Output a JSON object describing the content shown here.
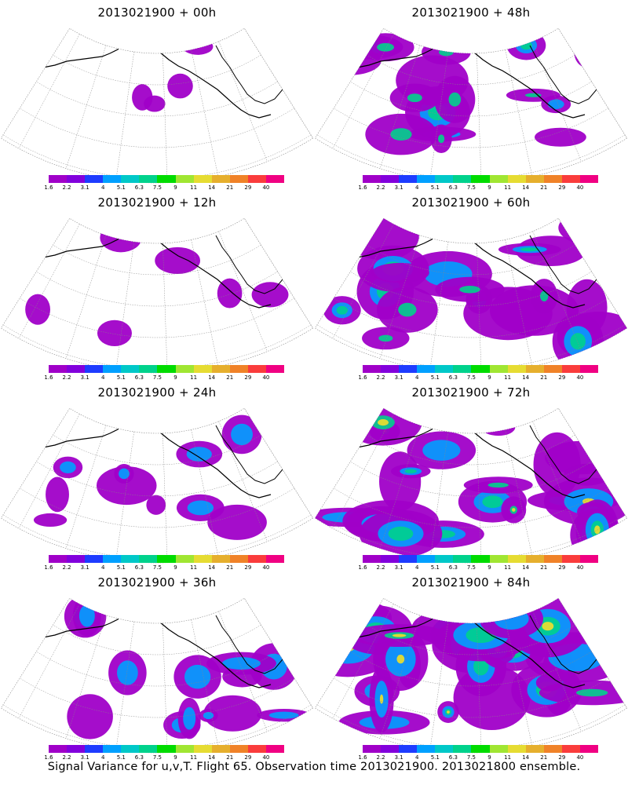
{
  "caption": "Signal Variance for u,v,T. Flight 65. Observation time 2013021900. 2013021800 ensemble.",
  "colorbar": {
    "labels": [
      "1.6",
      "2.2",
      "3.1",
      "4",
      "5.1",
      "6.3",
      "7.5",
      "9",
      "11",
      "14",
      "21",
      "29",
      "40"
    ],
    "colors": [
      "#a000c8",
      "#8200dc",
      "#1e3cff",
      "#00a0ff",
      "#00c8c8",
      "#00d28c",
      "#00dc00",
      "#a0e632",
      "#e6dc32",
      "#e6af2d",
      "#f08228",
      "#fa3c3c",
      "#f00082"
    ]
  },
  "panels": [
    {
      "title": "2013021900 + 00h",
      "lead_hours": 0,
      "intensity": 0
    },
    {
      "title": "2013021900 + 48h",
      "lead_hours": 48,
      "intensity": 4
    },
    {
      "title": "2013021900 + 12h",
      "lead_hours": 12,
      "intensity": 1
    },
    {
      "title": "2013021900 + 60h",
      "lead_hours": 60,
      "intensity": 5
    },
    {
      "title": "2013021900 + 24h",
      "lead_hours": 24,
      "intensity": 2
    },
    {
      "title": "2013021900 + 72h",
      "lead_hours": 72,
      "intensity": 6
    },
    {
      "title": "2013021900 + 36h",
      "lead_hours": 36,
      "intensity": 3
    },
    {
      "title": "2013021900 + 84h",
      "lead_hours": 84,
      "intensity": 7
    }
  ]
}
